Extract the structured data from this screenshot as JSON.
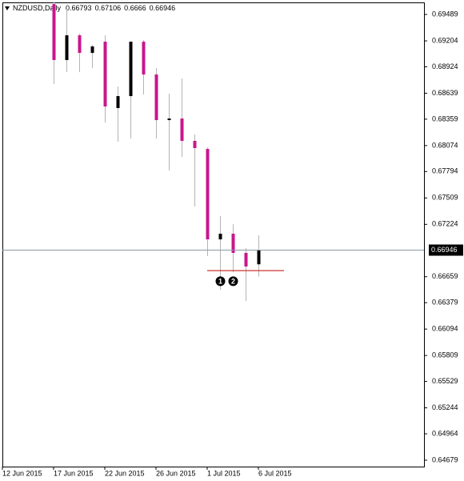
{
  "chart_data": {
    "type": "candlestick",
    "title": "NZDUSD,Daily",
    "x": [
      4,
      5,
      6,
      7,
      8,
      9,
      10,
      11,
      12,
      13,
      14,
      15,
      16,
      17,
      18,
      19,
      20
    ],
    "open": [
      0.69601,
      0.68997,
      0.69264,
      0.69074,
      0.69195,
      0.68479,
      0.68608,
      0.69195,
      0.68841,
      0.68349,
      0.68366,
      0.68125,
      0.68038,
      0.67062,
      0.67123,
      0.66916,
      0.66793
    ],
    "high": [
      0.69619,
      0.69558,
      0.69282,
      0.69161,
      0.69264,
      0.68712,
      0.69195,
      0.69213,
      0.6891,
      0.68634,
      0.68798,
      0.68194,
      0.68055,
      0.67313,
      0.67226,
      0.66967,
      0.67106
    ],
    "low": [
      0.68738,
      0.68867,
      0.68867,
      0.6891,
      0.68323,
      0.68116,
      0.6815,
      0.68625,
      0.6815,
      0.67805,
      0.67952,
      0.67416,
      0.66881,
      0.66518,
      0.66708,
      0.66397,
      0.6666
    ],
    "close": [
      0.68997,
      0.69264,
      0.69074,
      0.69144,
      0.68496,
      0.68608,
      0.69195,
      0.68841,
      0.68349,
      0.68366,
      0.68125,
      0.68047,
      0.67062,
      0.67123,
      0.66916,
      0.66769,
      0.66946
    ],
    "up_color": "#000000",
    "down_color": "#c8168c",
    "wick_color": "#b4b4b4",
    "xlim": [
      0,
      32.94
    ],
    "xticks": [
      {
        "value": 0,
        "label": "12 Jun 2015"
      },
      {
        "value": 4,
        "label": "17 Jun 2015"
      },
      {
        "value": 8,
        "label": "22 Jun 2015"
      },
      {
        "value": 12,
        "label": "26 Jun 2015"
      },
      {
        "value": 16,
        "label": "1 Jul 2015"
      },
      {
        "value": 20,
        "label": "6 Jul 2015"
      }
    ],
    "ylim": [
      0.6461,
      0.69619
    ],
    "yticks": [
      0.69489,
      0.69204,
      0.68924,
      0.68639,
      0.68359,
      0.68074,
      0.67794,
      0.67509,
      0.67224,
      0.66659,
      0.66379,
      0.66094,
      0.65809,
      0.65529,
      0.65244,
      0.64964,
      0.64679
    ],
    "level_line": {
      "value": 0.66725,
      "x": [
        16,
        22
      ],
      "color": "#c00000"
    },
    "annotations": [
      {
        "x": 17,
        "y": 0.6661,
        "label": "1"
      },
      {
        "x": 18,
        "y": 0.6661,
        "label": "2"
      }
    ]
  }
}
